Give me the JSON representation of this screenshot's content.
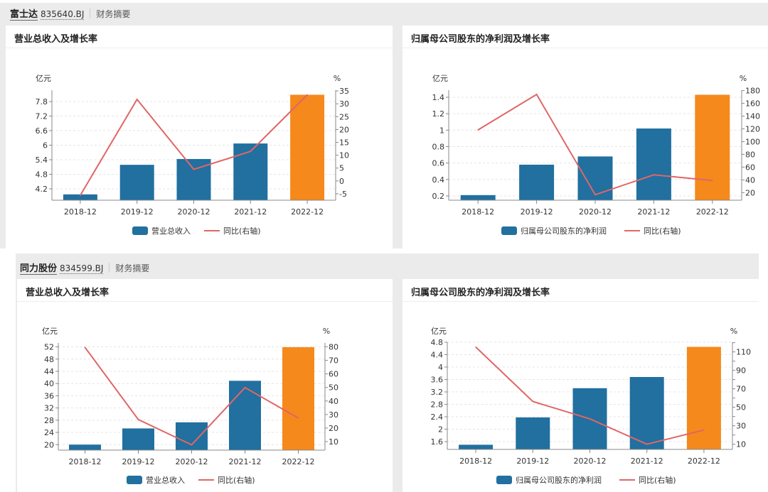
{
  "colors": {
    "bar": "#21709f",
    "bar_latest": "#f5891c",
    "line": "#e06666",
    "grid": "#e4e4e4",
    "axis": "#888888"
  },
  "sections": [
    {
      "company": "富士达",
      "code": "835640.BJ",
      "tab": "财务摘要",
      "cards": [
        {
          "title": "营业总收入及增长率"
        },
        {
          "title": "归属母公司股东的净利润及增长率"
        }
      ]
    },
    {
      "company": "同力股份",
      "code": "834599.BJ",
      "tab": "财务摘要",
      "cards": [
        {
          "title": "营业总收入及增长率"
        },
        {
          "title": "归属母公司股东的净利润及增长率"
        }
      ]
    }
  ],
  "chart_data": [
    {
      "type": "bar+line",
      "categories": [
        "2018-12",
        "2019-12",
        "2020-12",
        "2021-12",
        "2022-12"
      ],
      "left_unit": "亿元",
      "right_unit": "%",
      "left_ticks": [
        "4.2",
        "4.8",
        "5.4",
        "6",
        "6.6",
        "7.2",
        "7.8"
      ],
      "left_range": [
        3.73,
        8.27
      ],
      "right_ticks": [
        "-5",
        "0",
        "5",
        "10",
        "15",
        "20",
        "25",
        "30",
        "35"
      ],
      "right_minor_ticks": [],
      "right_range": [
        -7.5,
        35.3
      ],
      "bar_series": {
        "name": "营业总收入",
        "values": [
          3.97,
          5.19,
          5.43,
          6.07,
          8.08
        ]
      },
      "line_series": {
        "name": "同比(右轴)",
        "values": [
          -5.6,
          31.7,
          4.5,
          11.5,
          33.5
        ]
      },
      "grid": true,
      "legend": "bottom"
    },
    {
      "type": "bar+line",
      "categories": [
        "2018-12",
        "2019-12",
        "2020-12",
        "2021-12",
        "2022-12"
      ],
      "left_unit": "亿元",
      "right_unit": "%",
      "left_ticks": [
        "0.2",
        "0.4",
        "0.6",
        "0.8",
        "1",
        "1.2",
        "1.4"
      ],
      "left_range": [
        0.148,
        1.486
      ],
      "right_ticks": [
        "20",
        "40",
        "60",
        "80",
        "100",
        "120",
        "140",
        "160",
        "180"
      ],
      "right_minor_ticks": [],
      "right_range": [
        8.1,
        180.7
      ],
      "bar_series": {
        "name": "归属母公司股东的净利润",
        "values": [
          0.21,
          0.58,
          0.68,
          1.02,
          1.43
        ]
      },
      "line_series": {
        "name": "同比(右轴)",
        "values": [
          118.3,
          174,
          16.7,
          47.9,
          39
        ]
      },
      "grid": true,
      "legend": "bottom"
    },
    {
      "type": "bar+line",
      "categories": [
        "2018-12",
        "2019-12",
        "2020-12",
        "2021-12",
        "2022-12"
      ],
      "left_unit": "亿元",
      "right_unit": "%",
      "left_ticks": [
        "20",
        "24",
        "28",
        "32",
        "36",
        "40",
        "44",
        "48",
        "52"
      ],
      "left_range": [
        18.2,
        53.3
      ],
      "right_ticks": [
        "10",
        "20",
        "30",
        "40",
        "50",
        "60",
        "70",
        "80"
      ],
      "right_minor_ticks": [],
      "right_range": [
        3.7,
        82.9
      ],
      "bar_series": {
        "name": "营业总收入",
        "values": [
          20.0,
          25.3,
          27.3,
          40.9,
          51.9
        ]
      },
      "line_series": {
        "name": "同比(右轴)",
        "values": [
          79.6,
          26.3,
          7.6,
          49.9,
          27.4
        ]
      },
      "grid": true,
      "legend": "bottom"
    },
    {
      "type": "bar+line",
      "categories": [
        "2018-12",
        "2019-12",
        "2020-12",
        "2021-12",
        "2022-12"
      ],
      "left_unit": "亿元",
      "right_unit": "%",
      "left_ticks": [
        "1.6",
        "2",
        "2.4",
        "2.8",
        "3.2",
        "3.6",
        "4",
        "4.4",
        "4.8"
      ],
      "left_range": [
        1.35,
        4.8
      ],
      "right_ticks": [
        "10",
        "30",
        "50",
        "70",
        "90",
        "110"
      ],
      "right_minor_ticks": [
        20,
        40,
        60,
        80,
        100,
        120
      ],
      "right_range": [
        4.4,
        120.5
      ],
      "bar_series": {
        "name": "归属母公司股东的净利润",
        "values": [
          1.5,
          2.38,
          3.32,
          3.68,
          4.65
        ]
      },
      "line_series": {
        "name": "同比(右轴)",
        "values": [
          115.2,
          56.3,
          37.5,
          10,
          25.4
        ]
      },
      "grid": true,
      "legend": "bottom"
    }
  ]
}
